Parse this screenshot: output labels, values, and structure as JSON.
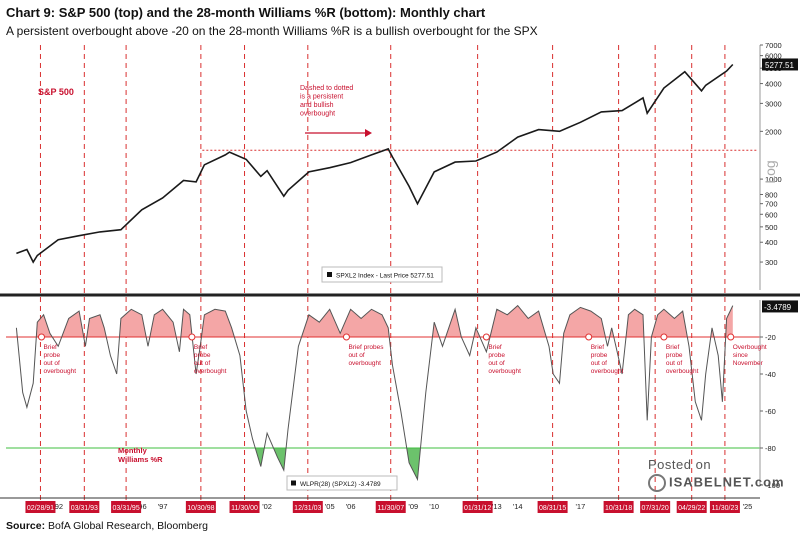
{
  "header": {
    "title": "Chart 9: S&P 500 (top) and the 28-month Williams %R (bottom): Monthly chart",
    "subtitle": "A persistent overbought above -20 on the 28-month Williams %R is a bullish overbought for the SPX"
  },
  "source": {
    "label": "Source:",
    "text": " BofA Global Research, Bloomberg"
  },
  "watermark": {
    "posted": "Posted on",
    "site": "ISABELNET.com"
  },
  "colors": {
    "price": "#1a1a1a",
    "wr_line": "#555555",
    "fill_over": "#f4a6a6",
    "fill_under": "#6cc26c",
    "vline": "#d93030",
    "redline": "#e03030",
    "greenline": "#3fbf3f",
    "date_box": "#c8102e"
  },
  "chart_data": [
    {
      "type": "line",
      "panel": "top",
      "label": "S&P 500",
      "scale": "log",
      "ylim": [
        200,
        7000
      ],
      "y_ticks": [
        300,
        400,
        500,
        600,
        700,
        800,
        1000,
        2000,
        3000,
        4000,
        5000,
        6000,
        7000
      ],
      "yaxis_label": "Log",
      "legend": "SPXL2 Index - Last Price 5277.51",
      "last_value": "5277.51",
      "reference_level": 1520,
      "annotation": "Dashed to dotted is a persistent and bullish overbought",
      "x": [
        1990.0,
        1990.5,
        1990.8,
        1991.0,
        1992.0,
        1993.0,
        1994.0,
        1995.0,
        1996.0,
        1997.0,
        1998.0,
        1998.6,
        1999.0,
        2000.0,
        2000.2,
        2001.0,
        2001.7,
        2002.0,
        2002.8,
        2003.0,
        2004.0,
        2005.0,
        2006.0,
        2007.0,
        2007.8,
        2008.0,
        2008.8,
        2009.2,
        2010.0,
        2011.0,
        2012.0,
        2013.0,
        2014.0,
        2015.0,
        2016.0,
        2017.0,
        2018.0,
        2019.0,
        2020.0,
        2020.2,
        2021.0,
        2022.0,
        2022.8,
        2023.0,
        2024.0,
        2024.3
      ],
      "y": [
        340,
        360,
        300,
        330,
        415,
        440,
        465,
        480,
        640,
        760,
        980,
        960,
        1230,
        1420,
        1480,
        1330,
        1040,
        1130,
        780,
        850,
        1110,
        1180,
        1270,
        1420,
        1550,
        1380,
        900,
        700,
        1110,
        1280,
        1300,
        1480,
        1840,
        2050,
        2000,
        2280,
        2650,
        2700,
        3250,
        2600,
        3750,
        4750,
        3600,
        3900,
        4800,
        5277
      ]
    },
    {
      "type": "area",
      "panel": "bottom",
      "label": "Monthly Williams %R",
      "legend": "WLPR(28) (SPXL2) -3.4789",
      "last_value": "-3.4789",
      "ylim": [
        -100,
        0
      ],
      "y_ticks": [
        -20,
        -40,
        -60,
        -80,
        -100
      ],
      "overbought": -20,
      "oversold": -80,
      "x": [
        1990.0,
        1990.3,
        1990.5,
        1990.8,
        1991.0,
        1991.3,
        1991.6,
        1992.0,
        1992.5,
        1993.0,
        1993.3,
        1993.5,
        1994.0,
        1994.2,
        1994.5,
        1994.8,
        1995.0,
        1995.5,
        1996.0,
        1996.3,
        1996.6,
        1997.0,
        1997.5,
        1997.8,
        1998.0,
        1998.3,
        1998.6,
        1998.8,
        1999.0,
        1999.5,
        2000.0,
        2000.3,
        2000.7,
        2001.0,
        2001.3,
        2001.7,
        2002.0,
        2002.5,
        2002.8,
        2003.0,
        2003.5,
        2004.0,
        2004.5,
        2005.0,
        2005.5,
        2006.0,
        2006.5,
        2007.0,
        2007.5,
        2007.8,
        2008.0,
        2008.4,
        2008.8,
        2009.2,
        2009.6,
        2010.0,
        2010.4,
        2010.7,
        2011.0,
        2011.3,
        2011.7,
        2012.0,
        2012.5,
        2013.0,
        2013.5,
        2014.0,
        2014.5,
        2015.0,
        2015.5,
        2015.7,
        2016.0,
        2016.2,
        2016.5,
        2017.0,
        2017.5,
        2018.0,
        2018.3,
        2018.5,
        2018.8,
        2019.0,
        2019.3,
        2019.6,
        2020.0,
        2020.2,
        2020.4,
        2020.7,
        2021.0,
        2021.5,
        2021.9,
        2022.2,
        2022.5,
        2022.8,
        2023.0,
        2023.3,
        2023.6,
        2023.8,
        2024.0,
        2024.3
      ],
      "y": [
        -15,
        -50,
        -58,
        -45,
        -12,
        -8,
        -18,
        -25,
        -10,
        -6,
        -25,
        -10,
        -8,
        -15,
        -30,
        -40,
        -10,
        -5,
        -8,
        -25,
        -8,
        -5,
        -12,
        -28,
        -5,
        -8,
        -40,
        -25,
        -8,
        -5,
        -6,
        -15,
        -30,
        -60,
        -75,
        -90,
        -72,
        -85,
        -92,
        -70,
        -25,
        -8,
        -12,
        -5,
        -18,
        -5,
        -10,
        -5,
        -8,
        -15,
        -35,
        -60,
        -88,
        -97,
        -50,
        -12,
        -25,
        -15,
        -5,
        -20,
        -30,
        -15,
        -28,
        -5,
        -8,
        -3,
        -10,
        -6,
        -25,
        -40,
        -45,
        -18,
        -8,
        -4,
        -6,
        -10,
        -25,
        -15,
        -30,
        -40,
        -8,
        -5,
        -8,
        -65,
        -20,
        -8,
        -5,
        -10,
        -6,
        -25,
        -55,
        -65,
        -40,
        -15,
        -30,
        -55,
        -10,
        -3
      ]
    }
  ],
  "top_panel": {
    "label": "S&P 500",
    "annotation_lines": [
      "Dashed to dotted",
      "is a persistent",
      "and bullish",
      "overbought"
    ]
  },
  "bottom_panel": {
    "label_lines": [
      "Monthly",
      "Williams %R"
    ],
    "annotations": [
      {
        "x": 1991.2,
        "lines": [
          "Brief",
          "probe",
          "out of",
          "overbought"
        ]
      },
      {
        "x": 1998.4,
        "lines": [
          "Brief",
          "probe",
          "out of",
          "overbought"
        ]
      },
      {
        "x": 2005.8,
        "lines": [
          "Brief probes",
          "out of",
          "overbought"
        ]
      },
      {
        "x": 2012.5,
        "lines": [
          "Brief",
          "probe",
          "out of",
          "overbought"
        ]
      },
      {
        "x": 2017.4,
        "lines": [
          "Brief",
          "probe",
          "out of",
          "overbought"
        ]
      },
      {
        "x": 2021.0,
        "lines": [
          "Brief",
          "probe",
          "out of",
          "overbought"
        ]
      },
      {
        "x": 2024.2,
        "lines": [
          "Overbought",
          "since",
          "November"
        ]
      }
    ]
  },
  "x_axis": {
    "year_ticks": [
      {
        "x": 1992.0,
        "label": "'92"
      },
      {
        "x": 1996.0,
        "label": "'96"
      },
      {
        "x": 1997.0,
        "label": "'97"
      },
      {
        "x": 2002.0,
        "label": "'02"
      },
      {
        "x": 2005.0,
        "label": "'05"
      },
      {
        "x": 2006.0,
        "label": "'06"
      },
      {
        "x": 2009.0,
        "label": "'09"
      },
      {
        "x": 2010.0,
        "label": "'10"
      },
      {
        "x": 2013.0,
        "label": "'13"
      },
      {
        "x": 2014.0,
        "label": "'14"
      },
      {
        "x": 2017.0,
        "label": "'17"
      },
      {
        "x": 2025.0,
        "label": "'25"
      }
    ],
    "date_markers": [
      {
        "x": 1991.15,
        "label": "02/28/91"
      },
      {
        "x": 1993.25,
        "label": "03/31/93"
      },
      {
        "x": 1995.25,
        "label": "03/31/95"
      },
      {
        "x": 1998.83,
        "label": "10/30/98"
      },
      {
        "x": 2000.92,
        "label": "11/30/00"
      },
      {
        "x": 2003.95,
        "label": "12/31/03"
      },
      {
        "x": 2007.92,
        "label": "11/30/07"
      },
      {
        "x": 2012.08,
        "label": "01/31/12"
      },
      {
        "x": 2015.67,
        "label": "08/31/15"
      },
      {
        "x": 2018.83,
        "label": "10/31/18"
      },
      {
        "x": 2020.58,
        "label": "07/31/20"
      },
      {
        "x": 2022.33,
        "label": "04/29/22"
      },
      {
        "x": 2023.92,
        "label": "11/30/23"
      }
    ]
  }
}
